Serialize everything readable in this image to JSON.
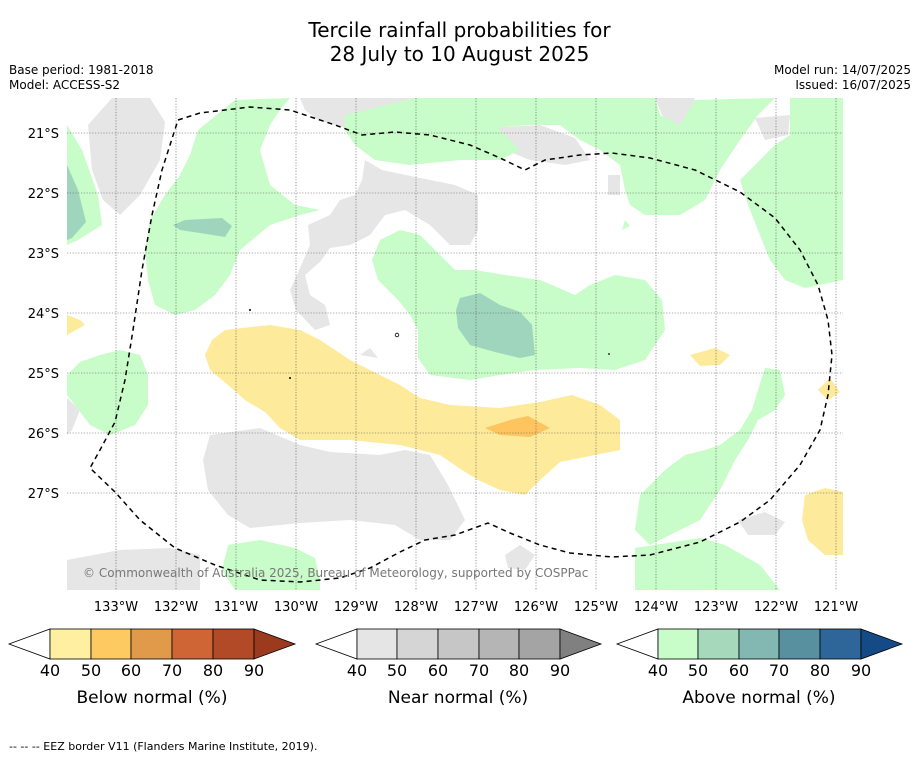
{
  "title": {
    "line1": "Tercile rainfall probabilities for",
    "line2": "28 July to 10 August 2025"
  },
  "meta_left": [
    "Base period: 1981-2018",
    "Model: ACCESS-S2"
  ],
  "meta_right": [
    "Model run: 14/07/2025",
    "Issued: 16/07/2025"
  ],
  "map": {
    "lat_labels": [
      "21°S",
      "22°S",
      "23°S",
      "24°S",
      "25°S",
      "26°S",
      "27°S"
    ],
    "lon_labels": [
      "133°W",
      "132°W",
      "131°W",
      "130°W",
      "129°W",
      "128°W",
      "127°W",
      "126°W",
      "125°W",
      "124°W",
      "123°W",
      "122°W",
      "121°W"
    ],
    "copyright": "© Commonwealth of Australia 2025, Bureau of Meteorology, supported by COSPPac",
    "colors": {
      "near_normal_40": "#e6e6e6",
      "above_40": "#c8fcc8",
      "above_50": "#9fd5bd",
      "below_40": "#fdea9a",
      "below_50": "#fdc45f"
    }
  },
  "colorbars": [
    {
      "label": "Below normal (%)",
      "ticks": [
        "40",
        "50",
        "60",
        "70",
        "80",
        "90"
      ],
      "colors": [
        "#fef0a0",
        "#fdca62",
        "#e09a4a",
        "#cf6535",
        "#b34a27"
      ],
      "extend_color": "#9c3a1e"
    },
    {
      "label": "Near normal (%)",
      "ticks": [
        "40",
        "50",
        "60",
        "70",
        "80",
        "90"
      ],
      "colors": [
        "#e5e5e5",
        "#d5d5d5",
        "#c6c6c6",
        "#b5b5b5",
        "#a4a4a4"
      ],
      "extend_color": "#808080"
    },
    {
      "label": "Above normal (%)",
      "ticks": [
        "40",
        "50",
        "60",
        "70",
        "80",
        "90"
      ],
      "colors": [
        "#c8fcc8",
        "#a6d8bb",
        "#82b7b2",
        "#5890a0",
        "#2f6699"
      ],
      "extend_color": "#144a85"
    }
  ],
  "footer": "--  --  -- EEZ border V11 (Flanders Marine Institute, 2019)."
}
